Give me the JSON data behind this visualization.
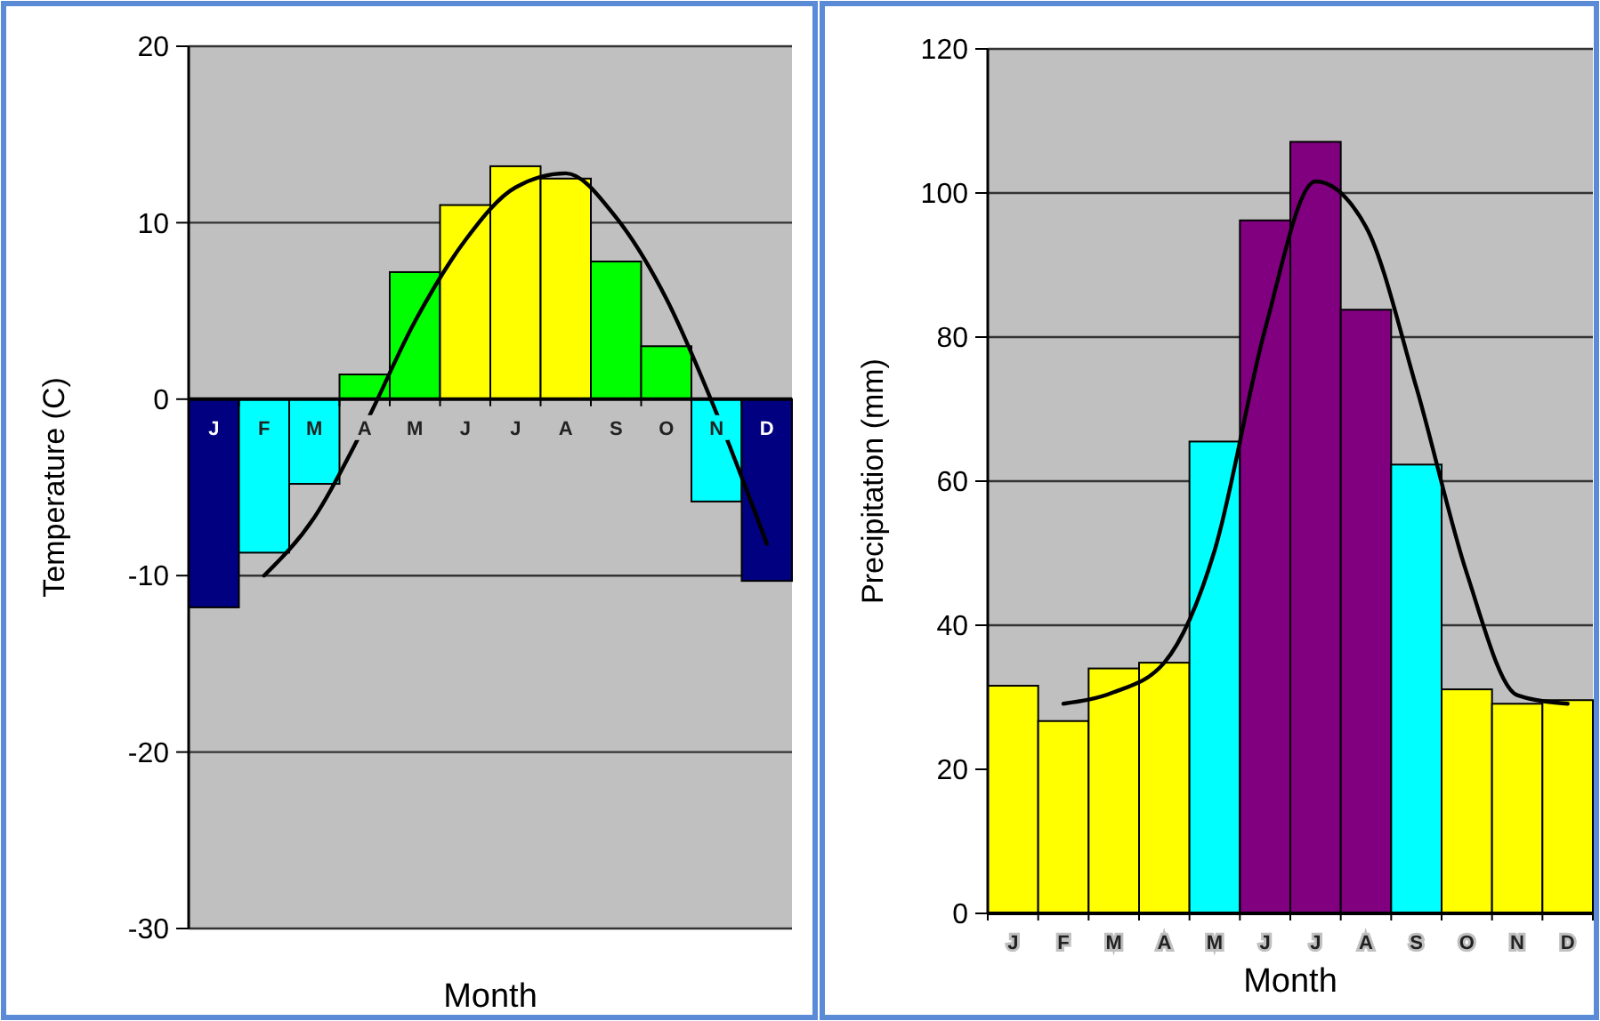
{
  "chart_data": [
    {
      "type": "bar",
      "ylabel": "Temperature (C)",
      "xlabel": "Month",
      "categories": [
        "J",
        "F",
        "M",
        "A",
        "M",
        "J",
        "J",
        "A",
        "S",
        "O",
        "N",
        "D"
      ],
      "ylim": [
        -30,
        20
      ],
      "yticks": [
        20,
        10,
        0,
        -10,
        -20,
        -30
      ],
      "grid": "y",
      "series": [
        {
          "type": "bar",
          "values": [
            -11.8,
            -8.7,
            -4.8,
            1.4,
            7.2,
            11.0,
            13.2,
            12.5,
            7.8,
            3.0,
            -5.8,
            -10.3
          ],
          "colors": [
            "#000080",
            "#00ffff",
            "#00ffff",
            "#00ff00",
            "#00ff00",
            "#ffff00",
            "#ffff00",
            "#ffff00",
            "#00ff00",
            "#00ff00",
            "#00ffff",
            "#000080"
          ]
        },
        {
          "type": "line",
          "color": "#000000",
          "values": [
            null,
            -10.0,
            -6.7,
            -1.5,
            4.4,
            9.0,
            12.0,
            12.8,
            10.3,
            5.7,
            -0.8,
            -8.2
          ]
        }
      ]
    },
    {
      "type": "bar",
      "ylabel": "Precipitation (mm)",
      "xlabel": "Month",
      "categories": [
        "J",
        "F",
        "M",
        "A",
        "M",
        "J",
        "J",
        "A",
        "S",
        "O",
        "N",
        "D"
      ],
      "ylim": [
        0,
        120
      ],
      "yticks": [
        0,
        20,
        40,
        60,
        80,
        100,
        120
      ],
      "grid": "y",
      "series": [
        {
          "type": "bar",
          "values": [
            31.6,
            26.7,
            34.0,
            34.8,
            65.5,
            96.2,
            107.1,
            83.8,
            62.3,
            31.1,
            29.1,
            29.6
          ],
          "colors": [
            "#ffff00",
            "#ffff00",
            "#ffff00",
            "#ffff00",
            "#00ffff",
            "#800080",
            "#800080",
            "#800080",
            "#00ffff",
            "#ffff00",
            "#ffff00",
            "#ffff00"
          ]
        },
        {
          "type": "line",
          "color": "#000000",
          "values": [
            null,
            29.1,
            30.7,
            34.8,
            50.4,
            81.1,
            101.6,
            95.3,
            73.0,
            47.2,
            30.3,
            29.1
          ]
        }
      ]
    }
  ]
}
